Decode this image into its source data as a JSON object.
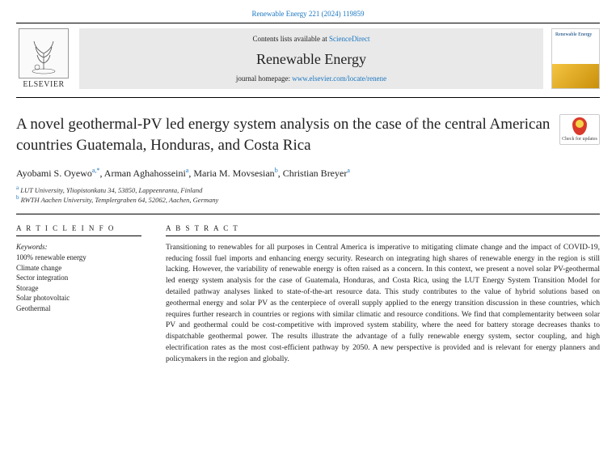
{
  "citation": "Renewable Energy 221 (2024) 119859",
  "banner": {
    "contents_prefix": "Contents lists available at ",
    "contents_link": "ScienceDirect",
    "journal_title": "Renewable Energy",
    "homepage_prefix": "journal homepage: ",
    "homepage_url": "www.elsevier.com/locate/renene",
    "publisher_logo_text": "ELSEVIER",
    "cover_label": "Renewable Energy"
  },
  "check_updates_label": "Check for updates",
  "article_title": "A novel geothermal-PV led energy system analysis on the case of the central American countries Guatemala, Honduras, and Costa Rica",
  "authors_html": "Ayobami S. Oyewo|a,*|, Arman Aghahosseini|a|, Maria M. Movsesian|b|, Christian Breyer|a|",
  "authors": [
    {
      "name": "Ayobami S. Oyewo",
      "aff": "a",
      "corr": true
    },
    {
      "name": "Arman Aghahosseini",
      "aff": "a",
      "corr": false
    },
    {
      "name": "Maria M. Movsesian",
      "aff": "b",
      "corr": false
    },
    {
      "name": "Christian Breyer",
      "aff": "a",
      "corr": false
    }
  ],
  "affiliations": [
    {
      "key": "a",
      "text": "LUT University, Yliopistonkatu 34, 53850, Lappeenranta, Finland"
    },
    {
      "key": "b",
      "text": "RWTH Aachen University, Templergraben 64, 52062, Aachen, Germany"
    }
  ],
  "article_info_head": "A R T I C L E  I N F O",
  "abstract_head": "A B S T R A C T",
  "keywords_label": "Keywords:",
  "keywords": [
    "100% renewable energy",
    "Climate change",
    "Sector integration",
    "Storage",
    "Solar photovoltaic",
    "Geothermal"
  ],
  "abstract": "Transitioning to renewables for all purposes in Central America is imperative to mitigating climate change and the impact of COVID-19, reducing fossil fuel imports and enhancing energy security. Research on integrating high shares of renewable energy in the region is still lacking. However, the variability of renewable energy is often raised as a concern. In this context, we present a novel solar PV-geothermal led energy system analysis for the case of Guatemala, Honduras, and Costa Rica, using the LUT Energy System Transition Model for detailed pathway analyses linked to state-of-the-art resource data. This study contributes to the value of hybrid solutions based on geothermal energy and solar PV as the centerpiece of overall supply applied to the energy transition discussion in these countries, which requires further research in countries or regions with similar climatic and resource conditions. We find that complementarity between solar PV and geothermal could be cost-competitive with improved system stability, where the need for battery storage decreases thanks to dispatchable geothermal power. The results illustrate the advantage of a fully renewable energy system, sector coupling, and high electrification rates as the most cost-efficient pathway by 2050. A new perspective is provided and is relevant for energy planners and policymakers in the region and globally."
}
